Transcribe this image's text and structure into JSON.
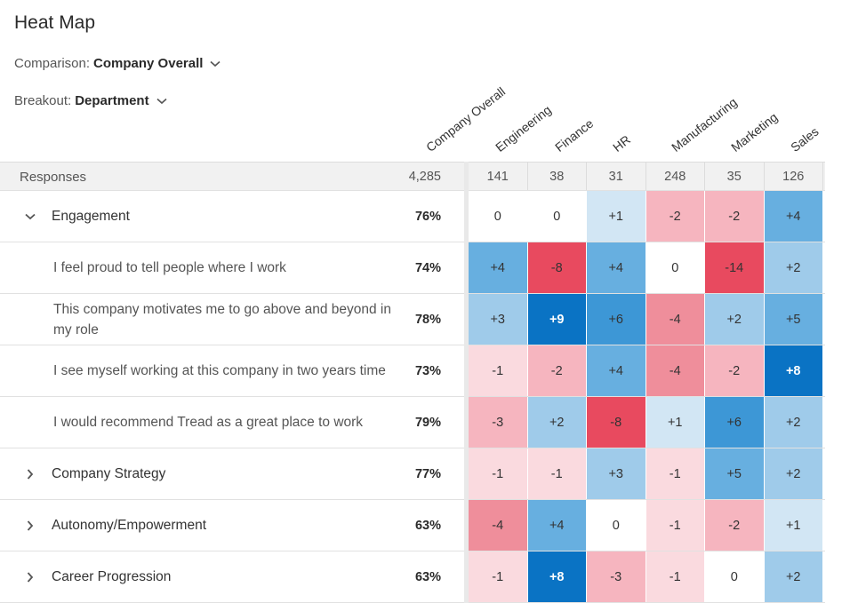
{
  "title": "Heat Map",
  "comparison": {
    "label": "Comparison:",
    "value": "Company Overall"
  },
  "breakout": {
    "label": "Breakout:",
    "value": "Department"
  },
  "columns": [
    "Company Overall",
    "Engineering",
    "Finance",
    "HR",
    "Manufacturing",
    "Marketing",
    "Sales"
  ],
  "responses": {
    "label": "Responses",
    "overall": "4,285",
    "values": [
      "141",
      "38",
      "31",
      "248",
      "35",
      "126"
    ]
  },
  "rows": [
    {
      "type": "group",
      "expanded": true,
      "label": "Engagement",
      "overall": "76%",
      "values": [
        "0",
        "0",
        "+1",
        "-2",
        "-2",
        "+4"
      ]
    },
    {
      "type": "question",
      "label": "I feel proud to tell people where I work",
      "overall": "74%",
      "values": [
        "+4",
        "-8",
        "+4",
        "0",
        "-14",
        "+2"
      ]
    },
    {
      "type": "question",
      "label": "This company motivates me to go above and beyond in my role",
      "overall": "78%",
      "values": [
        "+3",
        "+9",
        "+6",
        "-4",
        "+2",
        "+5"
      ]
    },
    {
      "type": "question",
      "label": "I see myself working at this company in two years time",
      "overall": "73%",
      "values": [
        "-1",
        "-2",
        "+4",
        "-4",
        "-2",
        "+8"
      ]
    },
    {
      "type": "question",
      "label": "I would recommend Tread as a great place to work",
      "overall": "79%",
      "values": [
        "-3",
        "+2",
        "-8",
        "+1",
        "+6",
        "+2"
      ]
    },
    {
      "type": "group",
      "expanded": false,
      "label": "Company Strategy",
      "overall": "77%",
      "values": [
        "-1",
        "-1",
        "+3",
        "-1",
        "+5",
        "+2"
      ]
    },
    {
      "type": "group",
      "expanded": false,
      "label": "Autonomy/Empowerment",
      "overall": "63%",
      "values": [
        "-4",
        "+4",
        "0",
        "-1",
        "-2",
        "+1"
      ]
    },
    {
      "type": "group",
      "expanded": false,
      "label": "Career Progression",
      "overall": "63%",
      "values": [
        "-1",
        "+8",
        "-3",
        "-1",
        "0",
        "+2"
      ]
    }
  ],
  "colors": {
    "zero": "#ffffff",
    "pos": [
      "#d2e6f4",
      "#9fcbea",
      "#9fcbea",
      "#67afe0",
      "#67afe0",
      "#3d97d6",
      "#3d97d6",
      "#0a73c4",
      "#0a73c4"
    ],
    "neg": [
      "#fadadf",
      "#f6b5bf",
      "#f6b5bf",
      "#ef8e9b",
      "#ef8e9b",
      "#ef8e9b",
      "#ef8e9b",
      "#e84a5f",
      "#e84a5f"
    ]
  }
}
